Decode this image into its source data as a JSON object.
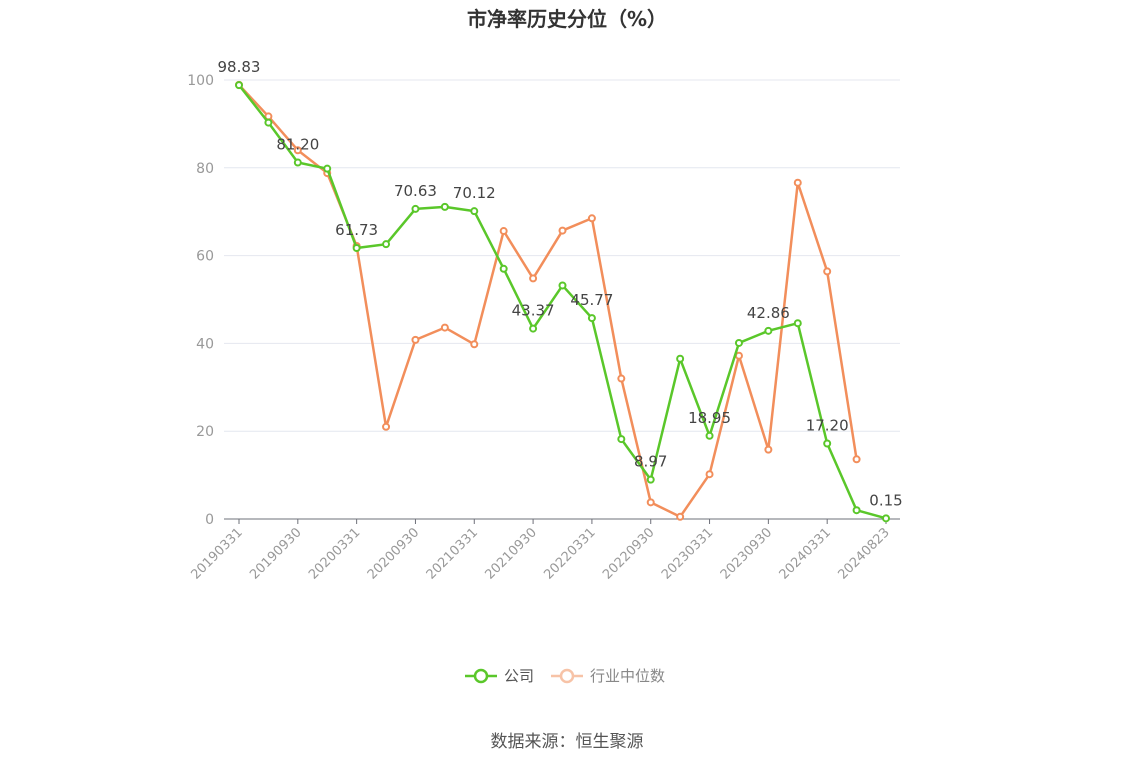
{
  "chart_data": {
    "type": "line",
    "title": "市净率历史分位（%）",
    "source": "数据来源：恒生聚源",
    "ylim": [
      0,
      100
    ],
    "yticks": [
      "0",
      "20",
      "40",
      "60",
      "80",
      "100"
    ],
    "xtick_labels": [
      "20190331",
      "20190930",
      "20200331",
      "20200930",
      "20210331",
      "20210930",
      "20220331",
      "20220930",
      "20230331",
      "20230930",
      "20240331",
      "20240823"
    ],
    "x": [
      "20190331",
      "20190630",
      "20190930",
      "20191231",
      "20200331",
      "20200630",
      "20200930",
      "20201231",
      "20210331",
      "20210630",
      "20210930",
      "20211231",
      "20220331",
      "20220630",
      "20220930",
      "20221231",
      "20230331",
      "20230630",
      "20230930",
      "20231231",
      "20240331",
      "20240630",
      "20240823"
    ],
    "series": [
      {
        "name": "公司",
        "color": "#5ac72a",
        "values": [
          98.83,
          90.3,
          81.2,
          79.8,
          61.73,
          62.6,
          70.63,
          71.1,
          70.12,
          57.0,
          43.37,
          53.2,
          45.77,
          18.2,
          8.97,
          36.5,
          18.95,
          40.1,
          42.86,
          44.6,
          17.2,
          2.0,
          0.15
        ]
      },
      {
        "name": "行业中位数",
        "color": "#f28e5b",
        "values": [
          98.9,
          91.7,
          84.0,
          78.8,
          62.2,
          21.0,
          40.8,
          43.6,
          39.8,
          65.6,
          54.8,
          65.7,
          68.5,
          32.0,
          3.8,
          0.5,
          10.2,
          37.2,
          15.8,
          76.6,
          56.4,
          13.6,
          null
        ]
      }
    ],
    "data_labels": [
      {
        "index": 0,
        "text": "98.83"
      },
      {
        "index": 2,
        "text": "81.20"
      },
      {
        "index": 4,
        "text": "61.73"
      },
      {
        "index": 6,
        "text": "70.63"
      },
      {
        "index": 8,
        "text": "70.12"
      },
      {
        "index": 10,
        "text": "43.37"
      },
      {
        "index": 12,
        "text": "45.77"
      },
      {
        "index": 14,
        "text": "8.97"
      },
      {
        "index": 16,
        "text": "18.95"
      },
      {
        "index": 18,
        "text": "42.86"
      },
      {
        "index": 20,
        "text": "17.20"
      },
      {
        "index": 22,
        "text": "0.15"
      }
    ],
    "legend": {
      "placement": "bottom-center",
      "items": [
        "公司",
        "行业中位数"
      ]
    },
    "grid": true
  }
}
